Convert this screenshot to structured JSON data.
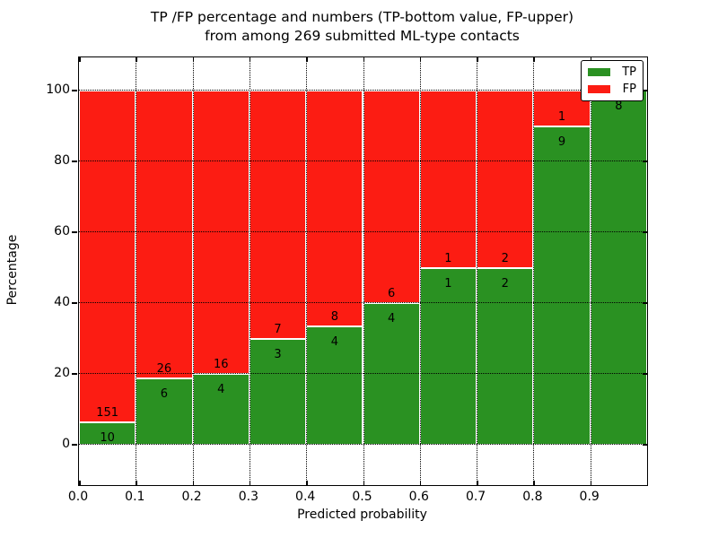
{
  "figure": {
    "title_line1": "TP /FP percentage and numbers (TP-bottom value, FP-upper)",
    "title_line2": "from among 269 submitted ML-type contacts",
    "xlabel": "Predicted probability",
    "ylabel": "Percentage"
  },
  "legend": {
    "items": [
      {
        "label": "TP",
        "color": "#2a9122"
      },
      {
        "label": "FP",
        "color": "#fc1c13"
      }
    ]
  },
  "chart_data": {
    "type": "bar",
    "stacked": true,
    "normalized_to_percent": true,
    "title": "TP /FP percentage and numbers (TP-bottom value, FP-upper) from among 269 submitted ML-type contacts",
    "xlabel": "Predicted probability",
    "ylabel": "Percentage",
    "total_contacts": 269,
    "series": [
      {
        "name": "TP",
        "color": "#2a9122",
        "counts": [
          10,
          6,
          4,
          3,
          4,
          4,
          1,
          2,
          9,
          8
        ]
      },
      {
        "name": "FP",
        "color": "#fc1c13",
        "counts": [
          151,
          26,
          16,
          7,
          8,
          6,
          1,
          2,
          1,
          0
        ]
      }
    ],
    "bins": [
      {
        "x_range": [
          0.0,
          0.1
        ],
        "tp": 10,
        "fp": 151,
        "tp_percent": 6.21
      },
      {
        "x_range": [
          0.1,
          0.2
        ],
        "tp": 6,
        "fp": 26,
        "tp_percent": 18.75
      },
      {
        "x_range": [
          0.2,
          0.3
        ],
        "tp": 4,
        "fp": 16,
        "tp_percent": 20.0
      },
      {
        "x_range": [
          0.3,
          0.4
        ],
        "tp": 3,
        "fp": 7,
        "tp_percent": 30.0
      },
      {
        "x_range": [
          0.4,
          0.5
        ],
        "tp": 4,
        "fp": 8,
        "tp_percent": 33.33
      },
      {
        "x_range": [
          0.5,
          0.6
        ],
        "tp": 4,
        "fp": 6,
        "tp_percent": 40.0
      },
      {
        "x_range": [
          0.6,
          0.7
        ],
        "tp": 1,
        "fp": 1,
        "tp_percent": 50.0
      },
      {
        "x_range": [
          0.7,
          0.8
        ],
        "tp": 2,
        "fp": 2,
        "tp_percent": 50.0
      },
      {
        "x_range": [
          0.8,
          0.9
        ],
        "tp": 9,
        "fp": 1,
        "tp_percent": 90.0
      },
      {
        "x_range": [
          0.9,
          1.0
        ],
        "tp": 8,
        "fp": 0,
        "tp_percent": 100.0
      }
    ],
    "x_ticks": [
      "0.0",
      "0.1",
      "0.2",
      "0.3",
      "0.4",
      "0.5",
      "0.6",
      "0.7",
      "0.8",
      "0.9"
    ],
    "y_ticks": [
      0,
      20,
      40,
      60,
      80,
      100
    ],
    "xlim": [
      0.0,
      1.0
    ],
    "ylim": [
      -11.4,
      109.4
    ],
    "grid": true,
    "grid_style": "dotted",
    "legend_position": "upper right",
    "colors": {
      "tp": "#2a9122",
      "fp": "#fc1c13",
      "bar_edge": "#ffffff",
      "text": "#000000"
    }
  }
}
